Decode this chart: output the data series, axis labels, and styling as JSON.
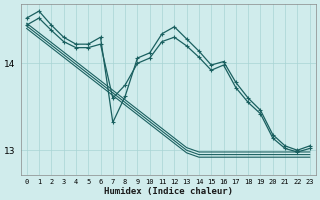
{
  "xlabel": "Humidex (Indice chaleur)",
  "bg_color": "#d0ecec",
  "grid_color": "#a8d4d4",
  "line_color": "#1a6060",
  "xlim": [
    -0.5,
    23.5
  ],
  "ylim": [
    12.72,
    14.68
  ],
  "yticks": [
    13,
    14
  ],
  "x": [
    0,
    1,
    2,
    3,
    4,
    5,
    6,
    7,
    8,
    9,
    10,
    11,
    12,
    13,
    14,
    15,
    16,
    17,
    18,
    19,
    20,
    21,
    22,
    23
  ],
  "line_marked1": [
    14.52,
    14.6,
    14.44,
    14.3,
    14.22,
    14.22,
    14.3,
    13.32,
    13.62,
    14.06,
    14.12,
    14.34,
    14.42,
    14.28,
    14.14,
    13.98,
    14.02,
    13.78,
    13.6,
    13.46,
    13.18,
    13.05,
    13.0,
    13.05
  ],
  "line_marked2": [
    14.44,
    14.52,
    14.38,
    14.25,
    14.18,
    14.18,
    14.22,
    13.6,
    13.75,
    14.0,
    14.06,
    14.25,
    14.3,
    14.2,
    14.07,
    13.92,
    13.98,
    13.72,
    13.55,
    13.42,
    13.14,
    13.02,
    12.98,
    13.02
  ],
  "line_straight1": [
    14.46,
    14.35,
    14.24,
    14.13,
    14.02,
    13.91,
    13.8,
    13.69,
    13.58,
    13.47,
    13.36,
    13.25,
    13.14,
    13.03,
    12.98,
    12.98,
    12.98,
    12.98,
    12.98,
    12.98,
    12.98,
    12.98,
    12.98,
    12.98
  ],
  "line_straight2": [
    14.43,
    14.32,
    14.21,
    14.1,
    13.99,
    13.88,
    13.77,
    13.66,
    13.55,
    13.44,
    13.33,
    13.22,
    13.11,
    13.0,
    12.95,
    12.95,
    12.95,
    12.95,
    12.95,
    12.95,
    12.95,
    12.95,
    12.95,
    12.95
  ],
  "line_straight3": [
    14.4,
    14.29,
    14.18,
    14.07,
    13.96,
    13.85,
    13.74,
    13.63,
    13.52,
    13.41,
    13.3,
    13.19,
    13.08,
    12.97,
    12.92,
    12.92,
    12.92,
    12.92,
    12.92,
    12.92,
    12.92,
    12.92,
    12.92,
    12.92
  ]
}
